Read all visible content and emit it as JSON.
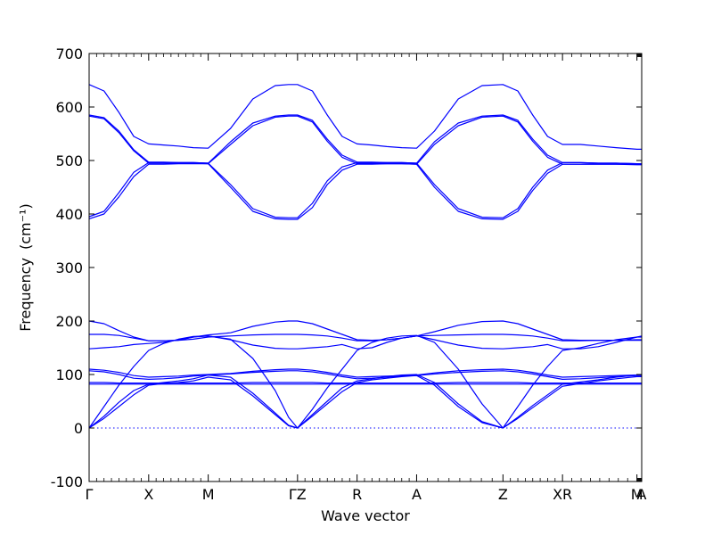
{
  "chart_data": {
    "type": "line",
    "title": "",
    "xlabel": "Wave vector",
    "ylabel": "Frequency",
    "ylabel_unit": "(cm⁻¹)",
    "ylim": [
      -100,
      700
    ],
    "yticks": [
      -100,
      0,
      100,
      200,
      300,
      400,
      500,
      600,
      700
    ],
    "grid": false,
    "legend": "none",
    "line_color": "#0000ff",
    "zero_line": true,
    "kpoints": [
      {
        "label": "Γ",
        "x": 0.0
      },
      {
        "label": "X",
        "x": 1.0
      },
      {
        "label": "M",
        "x": 2.0
      },
      {
        "label": "ΓZ",
        "x": 3.5
      },
      {
        "label": "R",
        "x": 4.5
      },
      {
        "label": "A",
        "x": 5.5
      },
      {
        "label": "Z",
        "x": 6.95
      },
      {
        "label": "XR",
        "x": 7.95
      },
      {
        "label": "M",
        "x": 9.2
      },
      {
        "label": "A",
        "x": 9.28
      }
    ],
    "xlim": [
      0,
      9.28
    ],
    "x": [
      0.0,
      0.25,
      0.5,
      0.75,
      1.0,
      1.25,
      1.5,
      1.75,
      2.0,
      2.375,
      2.75,
      3.125,
      3.35,
      3.5,
      3.75,
      4.0,
      4.25,
      4.5,
      4.75,
      5.0,
      5.25,
      5.5,
      5.8,
      6.2,
      6.6,
      6.95,
      7.2,
      7.45,
      7.7,
      7.95,
      8.25,
      8.55,
      8.85,
      9.2,
      9.28
    ],
    "series": [
      {
        "values": [
          0,
          40,
          80,
          115,
          145,
          158,
          166,
          171,
          172,
          166,
          130,
          70,
          20,
          0,
          35,
          75,
          110,
          145,
          160,
          168,
          172,
          173,
          160,
          110,
          45,
          0,
          40,
          80,
          115,
          145,
          150,
          158,
          165,
          170,
          170
        ]
      },
      {
        "values": [
          0,
          22,
          48,
          70,
          82,
          85,
          88,
          92,
          99,
          95,
          65,
          28,
          5,
          0,
          25,
          50,
          75,
          88,
          92,
          96,
          99,
          100,
          85,
          45,
          12,
          0,
          20,
          42,
          62,
          82,
          86,
          90,
          95,
          99,
          99
        ]
      },
      {
        "values": [
          0,
          18,
          40,
          62,
          80,
          83,
          85,
          88,
          95,
          90,
          60,
          25,
          4,
          0,
          22,
          45,
          68,
          85,
          90,
          93,
          96,
          98,
          80,
          40,
          10,
          0,
          18,
          38,
          58,
          78,
          83,
          88,
          92,
          96,
          96
        ]
      },
      {
        "values": [
          200,
          195,
          182,
          170,
          163,
          163,
          164,
          170,
          174,
          178,
          190,
          198,
          200,
          200,
          195,
          185,
          175,
          165,
          164,
          165,
          168,
          172,
          180,
          192,
          199,
          200,
          195,
          185,
          175,
          165,
          164,
          164,
          164,
          165,
          165
        ]
      },
      {
        "values": [
          175,
          175,
          173,
          168,
          163,
          163,
          164,
          166,
          170,
          172,
          174,
          175,
          175,
          175,
          174,
          172,
          168,
          163,
          163,
          165,
          168,
          172,
          173,
          174,
          175,
          175,
          174,
          172,
          168,
          163,
          163,
          164,
          164,
          164,
          164
        ]
      },
      {
        "values": [
          148,
          150,
          152,
          156,
          158,
          160,
          165,
          170,
          172,
          165,
          155,
          149,
          148,
          148,
          150,
          152,
          156,
          148,
          150,
          160,
          168,
          172,
          165,
          155,
          149,
          148,
          150,
          152,
          156,
          148,
          148,
          152,
          160,
          170,
          172
        ]
      },
      {
        "values": [
          110,
          108,
          104,
          98,
          95,
          96,
          97,
          99,
          100,
          102,
          106,
          109,
          110,
          110,
          108,
          104,
          99,
          95,
          96,
          97,
          98,
          99,
          103,
          107,
          109,
          110,
          108,
          104,
          99,
          95,
          96,
          97,
          98,
          99,
          99
        ]
      },
      {
        "values": [
          107,
          105,
          100,
          93,
          91,
          92,
          94,
          97,
          99,
          101,
          104,
          106,
          107,
          107,
          105,
          101,
          96,
          92,
          93,
          95,
          97,
          98,
          101,
          104,
          106,
          107,
          105,
          101,
          96,
          91,
          92,
          94,
          96,
          98,
          98
        ]
      },
      {
        "values": [
          85,
          85,
          84,
          84,
          84,
          84,
          84,
          84,
          84,
          84,
          85,
          85,
          85,
          85,
          85,
          84,
          84,
          84,
          84,
          84,
          84,
          84,
          84,
          85,
          85,
          85,
          85,
          84,
          84,
          84,
          84,
          84,
          84,
          84,
          84
        ]
      },
      {
        "values": [
          82,
          82,
          82,
          82,
          82,
          82,
          82,
          82,
          82,
          82,
          82,
          82,
          82,
          82,
          82,
          82,
          82,
          82,
          82,
          82,
          82,
          82,
          82,
          82,
          82,
          82,
          82,
          82,
          82,
          82,
          82,
          82,
          82,
          82,
          82
        ]
      },
      {
        "values": [
          642,
          630,
          590,
          545,
          531,
          529,
          527,
          524,
          523,
          560,
          615,
          640,
          642,
          642,
          630,
          585,
          545,
          531,
          529,
          526,
          524,
          523,
          555,
          615,
          640,
          642,
          630,
          585,
          545,
          530,
          530,
          527,
          524,
          521,
          521
        ]
      },
      {
        "values": [
          585,
          580,
          555,
          520,
          497,
          497,
          496,
          496,
          495,
          535,
          570,
          583,
          585,
          585,
          575,
          540,
          510,
          497,
          497,
          496,
          496,
          495,
          535,
          570,
          583,
          585,
          575,
          540,
          510,
          496,
          496,
          495,
          495,
          494,
          494
        ]
      },
      {
        "values": [
          583,
          578,
          552,
          518,
          495,
          495,
          495,
          495,
          494,
          530,
          565,
          581,
          583,
          583,
          572,
          536,
          506,
          494,
          494,
          494,
          494,
          493,
          530,
          565,
          581,
          583,
          572,
          536,
          506,
          493,
          493,
          493,
          493,
          492,
          492
        ]
      },
      {
        "values": [
          395,
          405,
          440,
          478,
          496,
          496,
          496,
          496,
          495,
          455,
          410,
          394,
          393,
          393,
          420,
          462,
          488,
          496,
          496,
          496,
          496,
          495,
          455,
          410,
          394,
          393,
          410,
          450,
          482,
          496,
          496,
          495,
          495,
          494,
          494
        ]
      },
      {
        "values": [
          391,
          400,
          432,
          470,
          493,
          493,
          494,
          494,
          494,
          450,
          405,
          391,
          390,
          390,
          412,
          455,
          482,
          493,
          493,
          494,
          494,
          493,
          450,
          405,
          391,
          390,
          405,
          444,
          476,
          493,
          493,
          493,
          493,
          493,
          493
        ]
      }
    ]
  }
}
